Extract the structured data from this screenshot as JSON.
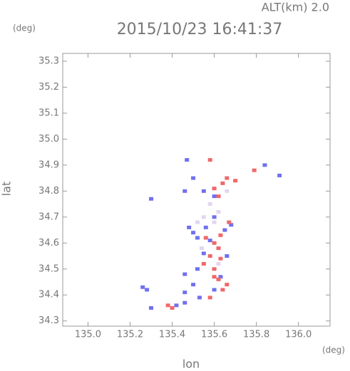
{
  "chart_data": {
    "type": "scatter",
    "title": "2015/10/23 16:41:37",
    "subtitle": "ALT(km) 2.0",
    "x_label": "lon",
    "y_label": "lat",
    "x_unit": "(deg)",
    "y_unit": "(deg)",
    "xlim": [
      134.88,
      136.15
    ],
    "ylim": [
      34.28,
      35.33
    ],
    "xticks": [
      {
        "value": 135.0,
        "label": "135.0"
      },
      135.2,
      135.4,
      135.6,
      135.8,
      {
        "value": 136.0,
        "label": "136.0"
      }
    ],
    "yticks": [
      34.3,
      34.4,
      34.5,
      34.6,
      34.7,
      34.8,
      34.9,
      {
        "value": 35.0,
        "label": "35.0"
      },
      35.1,
      35.2,
      35.3
    ],
    "series": [
      {
        "color": "#7070f0",
        "x": [
          135.47,
          135.5,
          135.46,
          135.55,
          135.6,
          135.3,
          135.48,
          135.5,
          135.52,
          135.55,
          135.52,
          135.46,
          135.5,
          135.46,
          135.26,
          135.28,
          135.3,
          135.42,
          135.46,
          135.53,
          135.6,
          135.63,
          135.66,
          135.68,
          135.84,
          135.91,
          135.6,
          135.56,
          135.58,
          135.65
        ],
        "values": [
          34.92,
          34.85,
          34.8,
          34.8,
          34.78,
          34.77,
          34.66,
          34.64,
          34.62,
          34.56,
          34.5,
          34.48,
          34.44,
          34.41,
          34.43,
          34.42,
          34.35,
          34.36,
          34.37,
          34.39,
          34.42,
          34.47,
          34.55,
          34.67,
          34.9,
          34.86,
          34.7,
          34.66,
          34.61,
          34.65
        ]
      },
      {
        "color": "#f06868",
        "x": [
          135.58,
          135.64,
          135.66,
          135.7,
          135.79,
          135.6,
          135.56,
          135.6,
          135.62,
          135.58,
          135.6,
          135.62,
          135.64,
          135.66,
          135.58,
          135.38,
          135.4,
          135.55,
          135.63,
          135.67,
          135.62,
          135.6,
          135.63
        ],
        "values": [
          34.92,
          34.83,
          34.85,
          34.84,
          34.88,
          34.81,
          34.62,
          34.6,
          34.58,
          34.55,
          34.5,
          34.46,
          34.42,
          34.44,
          34.39,
          34.36,
          34.35,
          34.52,
          34.63,
          34.68,
          34.78,
          34.47,
          34.54
        ]
      },
      {
        "color": "#e2d6f0",
        "x": [
          135.52,
          135.55,
          135.6,
          135.62,
          135.58,
          135.54,
          135.62,
          135.66
        ],
        "values": [
          34.68,
          34.7,
          34.68,
          34.72,
          34.75,
          34.58,
          34.52,
          34.8
        ]
      }
    ]
  }
}
